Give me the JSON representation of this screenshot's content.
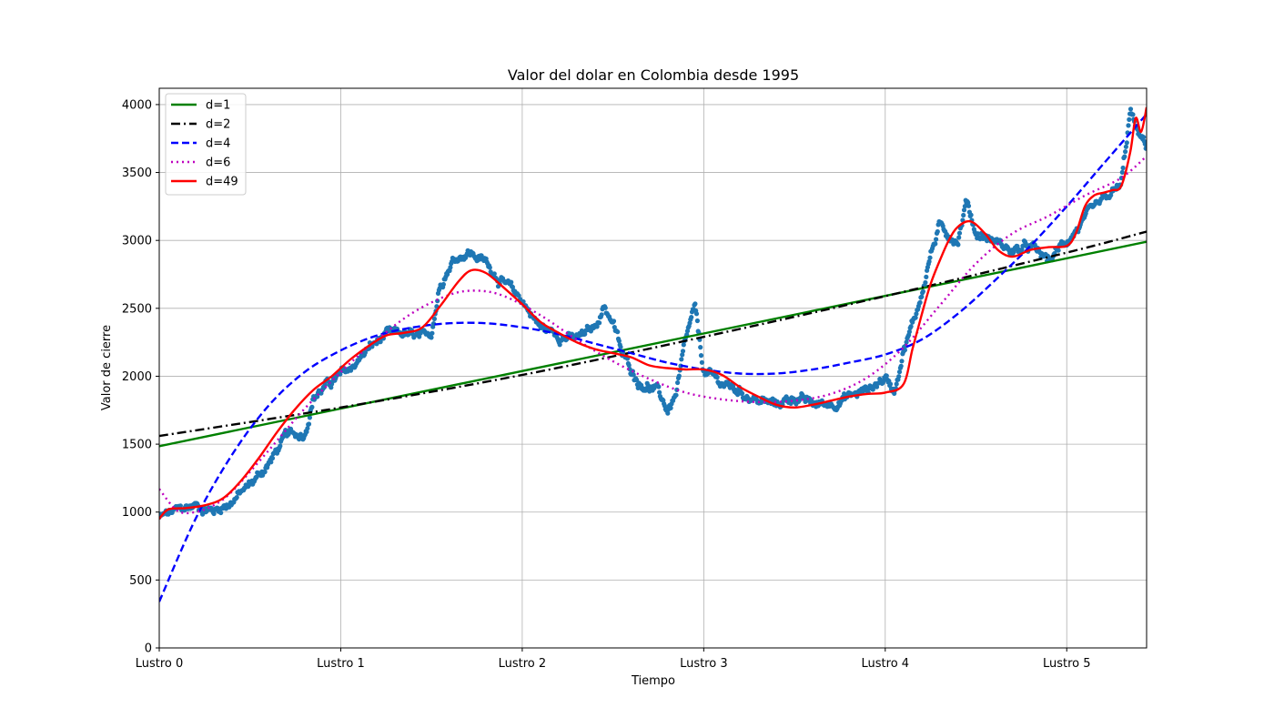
{
  "chart_data": {
    "type": "scatter",
    "title": "Valor del dolar en Colombia desde 1995",
    "xlabel": "Tiempo",
    "ylabel": "Valor de cierre",
    "xlim": [
      0,
      5.44
    ],
    "ylim": [
      0,
      4120
    ],
    "x_ticks": [
      0,
      1,
      2,
      3,
      4,
      5
    ],
    "x_tick_labels": [
      "Lustro 0",
      "Lustro 1",
      "Lustro 2",
      "Lustro 3",
      "Lustro 4",
      "Lustro 5"
    ],
    "y_ticks": [
      0,
      500,
      1000,
      1500,
      2000,
      2500,
      3000,
      3500,
      4000
    ],
    "y_tick_labels": [
      "0",
      "500",
      "1000",
      "1500",
      "2000",
      "2500",
      "3000",
      "3500",
      "4000"
    ],
    "grid": true,
    "legend_position": "top-left",
    "scatter_color": "#1f77b4",
    "series": [
      {
        "name": "d=1",
        "color": "#008000",
        "dash": "solid",
        "x": [
          0,
          5.44
        ],
        "y": [
          1485,
          2990
        ]
      },
      {
        "name": "d=2",
        "color": "#000000",
        "dash": "dashdot",
        "x": [
          0,
          1,
          2,
          3,
          4,
          5,
          5.44
        ],
        "y": [
          1560,
          1770,
          2010,
          2290,
          2590,
          2910,
          3065
        ]
      },
      {
        "name": "d=4",
        "color": "#0000ff",
        "dash": "dashed",
        "x": [
          0,
          0.2,
          0.4,
          0.6,
          0.8,
          1.0,
          1.2,
          1.4,
          1.6,
          1.8,
          2.0,
          2.2,
          2.4,
          2.6,
          2.8,
          3.0,
          3.2,
          3.4,
          3.6,
          3.8,
          4.0,
          4.2,
          4.4,
          4.6,
          4.8,
          5.0,
          5.2,
          5.44
        ],
        "y": [
          340,
          950,
          1420,
          1780,
          2030,
          2190,
          2300,
          2360,
          2390,
          2390,
          2360,
          2310,
          2240,
          2170,
          2100,
          2050,
          2020,
          2020,
          2050,
          2100,
          2160,
          2270,
          2460,
          2700,
          2960,
          3250,
          3560,
          3930
        ]
      },
      {
        "name": "d=6",
        "color": "#bf00bf",
        "dash": "dotted",
        "x": [
          0,
          0.1,
          0.2,
          0.3,
          0.4,
          0.6,
          0.8,
          1.0,
          1.2,
          1.4,
          1.6,
          1.75,
          1.9,
          2.1,
          2.3,
          2.5,
          2.7,
          2.9,
          3.1,
          3.3,
          3.5,
          3.7,
          3.9,
          4.1,
          4.3,
          4.5,
          4.7,
          4.9,
          5.1,
          5.3,
          5.44
        ],
        "y": [
          1170,
          1010,
          1000,
          1050,
          1150,
          1450,
          1760,
          2030,
          2270,
          2470,
          2600,
          2630,
          2590,
          2450,
          2270,
          2110,
          1980,
          1880,
          1830,
          1810,
          1820,
          1870,
          1990,
          2210,
          2520,
          2830,
          3050,
          3180,
          3330,
          3460,
          3620
        ]
      },
      {
        "name": "d=49",
        "color": "#ff0000",
        "dash": "solid",
        "x": [
          0,
          0.05,
          0.15,
          0.25,
          0.35,
          0.45,
          0.55,
          0.65,
          0.75,
          0.85,
          0.95,
          1.05,
          1.15,
          1.25,
          1.35,
          1.45,
          1.55,
          1.65,
          1.72,
          1.8,
          1.9,
          2.0,
          2.1,
          2.2,
          2.3,
          2.4,
          2.5,
          2.6,
          2.7,
          2.8,
          2.9,
          3.0,
          3.1,
          3.2,
          3.3,
          3.4,
          3.5,
          3.6,
          3.7,
          3.8,
          3.9,
          4.0,
          4.1,
          4.15,
          4.2,
          4.25,
          4.3,
          4.35,
          4.4,
          4.47,
          4.55,
          4.62,
          4.7,
          4.8,
          4.9,
          5.0,
          5.05,
          5.1,
          5.15,
          5.2,
          5.25,
          5.3,
          5.35,
          5.38,
          5.41,
          5.44
        ],
        "y": [
          950,
          1020,
          1030,
          1050,
          1100,
          1230,
          1400,
          1590,
          1760,
          1900,
          2000,
          2120,
          2220,
          2300,
          2320,
          2360,
          2520,
          2700,
          2780,
          2760,
          2650,
          2530,
          2400,
          2320,
          2250,
          2200,
          2170,
          2140,
          2080,
          2060,
          2050,
          2050,
          2010,
          1920,
          1850,
          1790,
          1770,
          1790,
          1820,
          1850,
          1870,
          1880,
          1940,
          2200,
          2450,
          2680,
          2850,
          3000,
          3100,
          3140,
          3050,
          2930,
          2880,
          2930,
          2950,
          2960,
          3050,
          3250,
          3330,
          3350,
          3370,
          3400,
          3650,
          3900,
          3800,
          3980
        ]
      }
    ],
    "scatter_anchor_x": [
      0,
      0.1,
      0.2,
      0.3,
      0.4,
      0.5,
      0.6,
      0.7,
      0.8,
      0.85,
      0.95,
      1.05,
      1.15,
      1.25,
      1.35,
      1.45,
      1.5,
      1.55,
      1.62,
      1.7,
      1.8,
      1.9,
      2.0,
      2.1,
      2.2,
      2.3,
      2.4,
      2.45,
      2.5,
      2.55,
      2.6,
      2.65,
      2.7,
      2.75,
      2.8,
      2.85,
      2.9,
      2.95,
      3.0,
      3.1,
      3.2,
      3.3,
      3.4,
      3.5,
      3.6,
      3.7,
      3.8,
      3.9,
      4.0,
      4.05,
      4.1,
      4.15,
      4.2,
      4.25,
      4.3,
      4.35,
      4.4,
      4.45,
      4.5,
      4.6,
      4.7,
      4.8,
      4.9,
      5.0,
      5.1,
      5.2,
      5.3,
      5.35,
      5.4,
      5.44
    ],
    "scatter_anchor_y": [
      960,
      1010,
      1050,
      1010,
      1080,
      1200,
      1350,
      1560,
      1580,
      1850,
      1960,
      2050,
      2200,
      2300,
      2310,
      2270,
      2330,
      2700,
      2860,
      2920,
      2840,
      2680,
      2560,
      2360,
      2310,
      2270,
      2360,
      2520,
      2400,
      2160,
      2050,
      1950,
      1930,
      1880,
      1750,
      1870,
      2250,
      2500,
      2030,
      1950,
      1890,
      1820,
      1790,
      1850,
      1790,
      1800,
      1850,
      1900,
      1990,
      1900,
      2200,
      2380,
      2600,
      2900,
      3100,
      3050,
      3000,
      3300,
      3050,
      3000,
      2920,
      2950,
      2850,
      3000,
      3150,
      3280,
      3400,
      3950,
      3750,
      3700
    ]
  }
}
